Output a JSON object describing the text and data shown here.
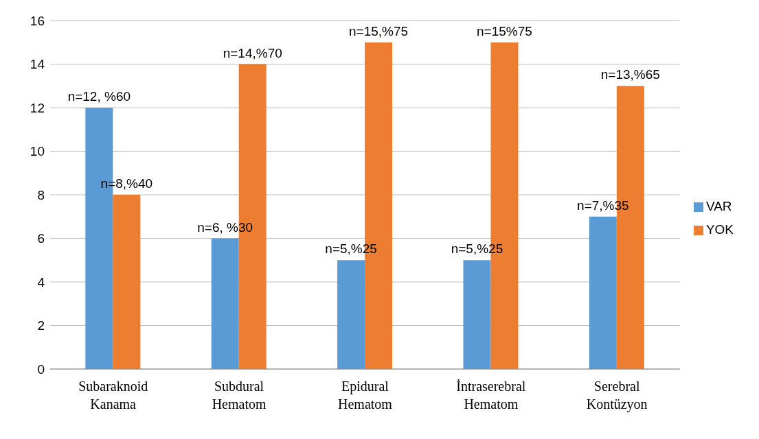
{
  "chart_data": {
    "type": "bar",
    "categories": [
      "Subaraknoid Kanama",
      "Subdural Hematom",
      "Epidural Hematom",
      "İntraserebral Hematom",
      "Serebral Kontüzyon"
    ],
    "series": [
      {
        "name": "VAR",
        "color": "#5b9bd5",
        "values": [
          12,
          6,
          5,
          5,
          7
        ],
        "value_labels": [
          "n=12, %60",
          "n=6, %30",
          "n=5,%25",
          "n=5,%25",
          "n=7,%35"
        ]
      },
      {
        "name": "YOK",
        "color": "#ed7d31",
        "values": [
          8,
          14,
          15,
          15,
          13
        ],
        "value_labels": [
          "n=8,%40",
          "n=14,%70",
          "n=15,%75",
          "n=15%75",
          "n=13,%65"
        ]
      }
    ],
    "ylim": [
      0,
      16
    ],
    "yticks": [
      0,
      2,
      4,
      6,
      8,
      10,
      12,
      14,
      16
    ],
    "grid": "y",
    "legend": "right"
  }
}
